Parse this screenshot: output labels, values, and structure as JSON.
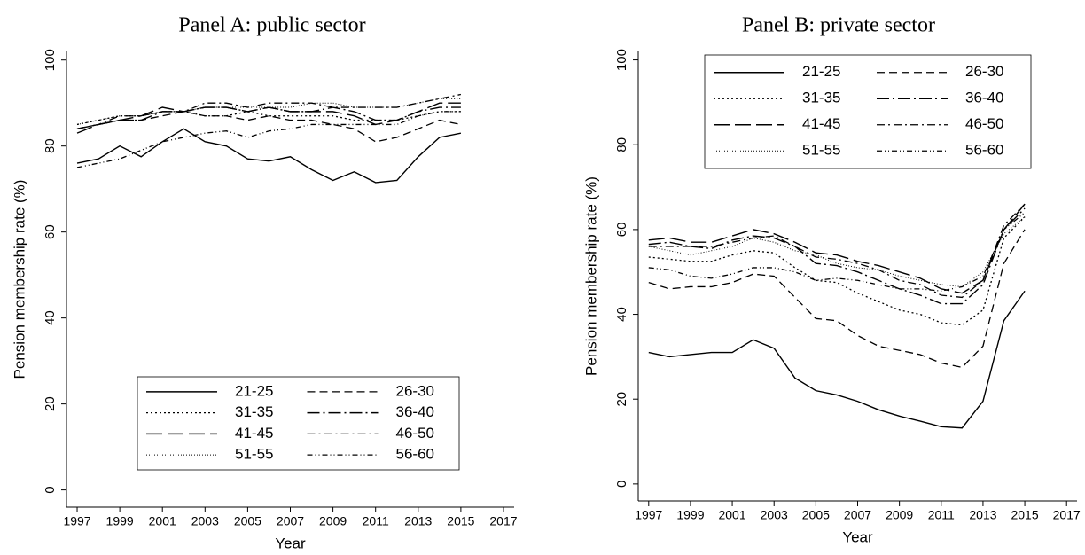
{
  "chart_data": [
    {
      "type": "line",
      "title": "Panel A: public sector",
      "x_label": "Year",
      "y_label": "Pension membership rate (%)",
      "x": [
        1997,
        1998,
        1999,
        2000,
        2001,
        2002,
        2003,
        2004,
        2005,
        2006,
        2007,
        2008,
        2009,
        2010,
        2011,
        2012,
        2013,
        2014,
        2015
      ],
      "xlim": [
        1996.5,
        2017.5
      ],
      "xticks": [
        1997,
        1999,
        2001,
        2003,
        2005,
        2007,
        2009,
        2011,
        2013,
        2015,
        2017
      ],
      "ylim": [
        -4,
        102
      ],
      "yticks": [
        0,
        20,
        40,
        60,
        80,
        100
      ],
      "legend_position": "bottom",
      "series": [
        {
          "name": "21-25",
          "color": "#000000",
          "values": [
            76,
            77,
            80,
            77.5,
            81,
            84,
            81,
            80,
            77,
            76.5,
            77.5,
            74.5,
            72,
            74,
            71.5,
            72,
            77.5,
            82,
            83
          ]
        },
        {
          "name": "26-30",
          "color": "#000000",
          "values": [
            84,
            85,
            86,
            86,
            87,
            88,
            87,
            87,
            86,
            87,
            86,
            86,
            85,
            84,
            81,
            82,
            84,
            86,
            85
          ]
        },
        {
          "name": "31-35",
          "color": "#000000",
          "values": [
            85,
            86,
            87,
            87,
            88,
            88,
            87,
            87,
            88,
            87,
            87,
            87,
            87,
            86,
            86,
            86,
            87,
            88,
            88
          ]
        },
        {
          "name": "36-40",
          "color": "#000000",
          "values": [
            84,
            85,
            86,
            86,
            88,
            88,
            89,
            89,
            88,
            89,
            88,
            88,
            89,
            88,
            86,
            86,
            88,
            89,
            89
          ]
        },
        {
          "name": "41-45",
          "color": "#000000",
          "values": [
            83,
            85,
            86,
            87,
            89,
            88,
            89,
            89,
            88,
            89,
            88,
            88,
            88,
            87,
            85,
            86,
            88,
            90,
            90
          ]
        },
        {
          "name": "46-50",
          "color": "#000000",
          "values": [
            84,
            85,
            87,
            87,
            88,
            88,
            90,
            90,
            89,
            90,
            90,
            90,
            89,
            89,
            89,
            89,
            90,
            91,
            92
          ]
        },
        {
          "name": "51-55",
          "color": "#000000",
          "values": [
            85,
            86,
            87,
            87,
            88,
            88,
            89,
            89,
            89,
            89,
            89,
            90,
            90,
            89,
            89,
            89,
            90,
            91,
            91
          ]
        },
        {
          "name": "56-60",
          "color": "#000000",
          "values": [
            75,
            76,
            77,
            79,
            81,
            82,
            83,
            83.5,
            82,
            83.5,
            84,
            85,
            85,
            85,
            85,
            85,
            87,
            88,
            88
          ]
        }
      ]
    },
    {
      "type": "line",
      "title": "Panel B: private sector",
      "x_label": "Year",
      "y_label": "Pension membership rate (%)",
      "x": [
        1997,
        1998,
        1999,
        2000,
        2001,
        2002,
        2003,
        2004,
        2005,
        2006,
        2007,
        2008,
        2009,
        2010,
        2011,
        2012,
        2013,
        2014,
        2015
      ],
      "xlim": [
        1996.5,
        2017.5
      ],
      "xticks": [
        1997,
        1999,
        2001,
        2003,
        2005,
        2007,
        2009,
        2011,
        2013,
        2015,
        2017
      ],
      "ylim": [
        -4,
        102
      ],
      "yticks": [
        0,
        20,
        40,
        60,
        80,
        100
      ],
      "legend_position": "top",
      "series": [
        {
          "name": "21-25",
          "color": "#000000",
          "values": [
            31,
            30,
            30.5,
            31,
            31,
            34,
            32,
            25,
            22,
            21,
            19.5,
            17.5,
            16,
            14.8,
            13.5,
            13.2,
            19.5,
            38.5,
            45.5
          ]
        },
        {
          "name": "26-30",
          "color": "#000000",
          "values": [
            47.5,
            46,
            46.5,
            46.5,
            47.5,
            49.5,
            49,
            44,
            39,
            38.5,
            35,
            32.5,
            31.5,
            30.5,
            28.5,
            27.5,
            32.5,
            52,
            60
          ]
        },
        {
          "name": "31-35",
          "color": "#000000",
          "values": [
            53.5,
            53,
            52.5,
            52.5,
            54,
            55,
            54.5,
            51,
            48,
            47.5,
            45,
            43,
            41,
            40,
            38,
            37.5,
            41,
            58,
            63
          ]
        },
        {
          "name": "36-40",
          "color": "#000000",
          "values": [
            56.5,
            57,
            56,
            55.5,
            57.5,
            58.5,
            58,
            56,
            52,
            51.5,
            50,
            48,
            46,
            44.5,
            42.5,
            42.5,
            47,
            60,
            65
          ]
        },
        {
          "name": "41-45",
          "color": "#000000",
          "values": [
            57.5,
            58,
            57,
            57,
            58.5,
            60,
            59,
            57,
            54.5,
            54,
            52.5,
            51.5,
            50,
            48.5,
            46,
            45,
            48,
            60,
            66
          ]
        },
        {
          "name": "46-50",
          "color": "#000000",
          "values": [
            56,
            56,
            56,
            56,
            57,
            58,
            58.5,
            56,
            53.5,
            53,
            52,
            50.5,
            48,
            47,
            44.5,
            44,
            48,
            61,
            66
          ]
        },
        {
          "name": "51-55",
          "color": "#000000",
          "values": [
            56,
            55,
            54,
            55,
            56,
            58,
            57,
            55,
            54,
            52,
            51,
            50.5,
            49,
            48,
            47,
            46.5,
            50,
            59,
            63
          ]
        },
        {
          "name": "56-60",
          "color": "#000000",
          "values": [
            51,
            50.5,
            49,
            48.5,
            49.5,
            51,
            51,
            50,
            48,
            48.5,
            48,
            47,
            46,
            46,
            45.5,
            46.5,
            49,
            60,
            64
          ]
        }
      ]
    }
  ]
}
